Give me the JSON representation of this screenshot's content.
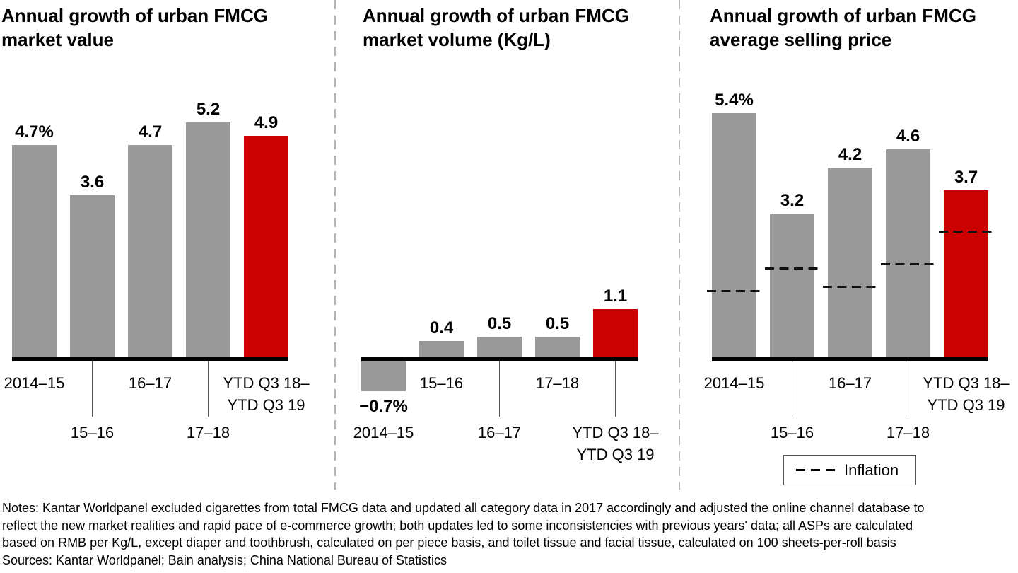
{
  "chart_data": [
    {
      "type": "bar",
      "title": "Annual growth of urban FMCG market value",
      "categories": [
        "2014–15",
        "15–16",
        "16–17",
        "17–18",
        "YTD Q3 18–\nYTD Q3 19"
      ],
      "values": [
        4.7,
        3.6,
        4.7,
        5.2,
        4.9
      ],
      "value_labels": [
        "4.7%",
        "3.6",
        "4.7",
        "5.2",
        "4.9"
      ],
      "bar_colors": [
        "#999999",
        "#999999",
        "#999999",
        "#999999",
        "#CC0000"
      ],
      "label_rows": [
        1,
        2,
        1,
        2,
        1
      ],
      "leader_bars": [
        1,
        3
      ],
      "grid": false,
      "ylabel": "",
      "xlabel": ""
    },
    {
      "type": "bar",
      "title": "Annual growth of urban FMCG market volume (Kg/L)",
      "categories": [
        "2014–15",
        "15–16",
        "16–17",
        "17–18",
        "YTD Q3 18–\nYTD Q3 19"
      ],
      "values": [
        -0.7,
        0.4,
        0.5,
        0.5,
        1.1
      ],
      "value_labels": [
        "−0.7%",
        "0.4",
        "0.5",
        "0.5",
        "1.1"
      ],
      "bar_colors": [
        "#999999",
        "#999999",
        "#999999",
        "#999999",
        "#CC0000"
      ],
      "label_rows": [
        2,
        1,
        2,
        1,
        2
      ],
      "leader_bars": [
        2,
        4
      ],
      "grid": false,
      "ylabel": "",
      "xlabel": ""
    },
    {
      "type": "bar",
      "title": "Annual growth of urban FMCG average selling price",
      "categories": [
        "2014–15",
        "15–16",
        "16–17",
        "17–18",
        "YTD Q3 18–\nYTD Q3 19"
      ],
      "values": [
        5.4,
        3.2,
        4.2,
        4.6,
        3.7
      ],
      "value_labels": [
        "5.4%",
        "3.2",
        "4.2",
        "4.6",
        "3.7"
      ],
      "bar_colors": [
        "#999999",
        "#999999",
        "#999999",
        "#999999",
        "#CC0000"
      ],
      "label_rows": [
        1,
        2,
        1,
        2,
        1
      ],
      "leader_bars": [
        1,
        3
      ],
      "inflation_series": {
        "name": "Inflation",
        "values": [
          1.5,
          2.0,
          1.6,
          2.1,
          2.8
        ],
        "style": "dashed-line"
      },
      "legend": {
        "label": "Inflation",
        "position": "below-chart"
      },
      "grid": false,
      "ylabel": "",
      "xlabel": ""
    }
  ],
  "colors": {
    "bar_gray": "#999999",
    "bar_highlight_red": "#CC0000",
    "axis_black": "#000000",
    "separator_gray": "#b3b3b3"
  },
  "notes_lines": [
    "Notes: Kantar Worldpanel excluded cigarettes from total FMCG data and updated all category data in 2017 accordingly and adjusted the online channel database to",
    "reflect the new market realities and rapid pace of e-commerce growth; both updates led to some inconsistencies with previous years' data; all ASPs are calculated",
    "based on RMB per Kg/L, except diaper and toothbrush, calculated on per piece basis, and toilet tissue and facial tissue, calculated on 100 sheets-per-roll basis"
  ],
  "sources": "Sources: Kantar Worldpanel; Bain analysis; China National Bureau of Statistics"
}
